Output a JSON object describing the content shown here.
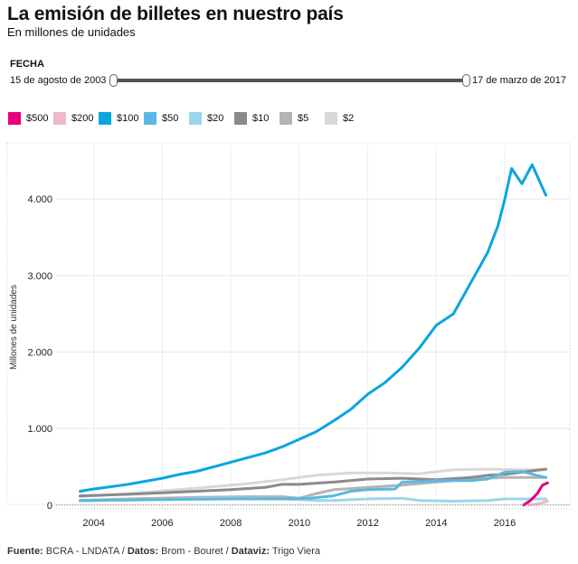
{
  "header": {
    "title": "La emisión de billetes en nuestro país",
    "subtitle": "En millones de unidades"
  },
  "filter": {
    "label": "FECHA",
    "start": "15 de agosto de 2003",
    "end": "17 de marzo de 2017"
  },
  "legend": [
    {
      "label": "$500",
      "color": "#e6007e"
    },
    {
      "label": "$200",
      "color": "#f0b8c8"
    },
    {
      "label": "$100",
      "color": "#0aa5e0"
    },
    {
      "label": "$50",
      "color": "#5ab8e0"
    },
    {
      "label": "$20",
      "color": "#9ad6ec"
    },
    {
      "label": "$10",
      "color": "#8a8a8a"
    },
    {
      "label": "$5",
      "color": "#b4b4b4"
    },
    {
      "label": "$2",
      "color": "#d8d8d8"
    }
  ],
  "footer": {
    "source_label": "Fuente:",
    "source": " BCRA - LNDATA / ",
    "data_label": "Datos:",
    "data": " Brom - Bouret / ",
    "viz_label": "Dataviz:",
    "viz": " Trigo Viera"
  },
  "chart_data": {
    "type": "line",
    "title": "La emisión de billetes en nuestro país",
    "subtitle": "En millones de unidades",
    "xlabel": "",
    "ylabel": "Millones de unidades",
    "xlim": [
      2002.9,
      2017.9
    ],
    "ylim": [
      -50,
      4700
    ],
    "y_ticks": [
      0,
      1000,
      2000,
      3000,
      4000
    ],
    "y_tick_labels": [
      "0",
      "1.000",
      "2.000",
      "3.000",
      "4.000"
    ],
    "x_ticks": [
      2004,
      2006,
      2008,
      2010,
      2012,
      2014,
      2016
    ],
    "x_tick_labels": [
      "2004",
      "2006",
      "2008",
      "2010",
      "2012",
      "2014",
      "2016"
    ],
    "grid": true,
    "series": [
      {
        "name": "$2",
        "color": "#d8d8d8",
        "x": [
          2003.6,
          2005,
          2007,
          2008.5,
          2009.5,
          2010.5,
          2011.5,
          2012.5,
          2013.5,
          2014.5,
          2015.5,
          2016.5,
          2017.2
        ],
        "y": [
          110,
          150,
          220,
          280,
          330,
          390,
          420,
          420,
          410,
          460,
          470,
          460,
          460
        ]
      },
      {
        "name": "$5",
        "color": "#b4b4b4",
        "x": [
          2003.6,
          2005,
          2007,
          2008.5,
          2009.5,
          2010,
          2010.5,
          2011,
          2012,
          2013,
          2014,
          2015,
          2016,
          2016.5,
          2017.2
        ],
        "y": [
          60,
          80,
          100,
          110,
          110,
          90,
          150,
          200,
          230,
          260,
          300,
          340,
          360,
          360,
          360
        ]
      },
      {
        "name": "$10",
        "color": "#8a8a8a",
        "x": [
          2003.6,
          2005,
          2006,
          2007,
          2008,
          2009,
          2009.5,
          2010,
          2011,
          2012,
          2013,
          2014,
          2015,
          2015.5,
          2016,
          2016.5,
          2017.2
        ],
        "y": [
          120,
          140,
          160,
          180,
          200,
          230,
          270,
          270,
          300,
          340,
          350,
          330,
          360,
          390,
          400,
          430,
          470
        ]
      },
      {
        "name": "$20",
        "color": "#9ad6ec",
        "x": [
          2003.6,
          2006,
          2008,
          2009.5,
          2010,
          2010.5,
          2011,
          2012,
          2013,
          2013.5,
          2014.5,
          2015.5,
          2016,
          2016.5,
          2017.2
        ],
        "y": [
          55,
          70,
          90,
          80,
          70,
          60,
          60,
          80,
          90,
          60,
          50,
          60,
          80,
          80,
          80
        ]
      },
      {
        "name": "$50",
        "color": "#5ab8e0",
        "x": [
          2003.6,
          2006,
          2008,
          2009.5,
          2010.3,
          2011,
          2011.5,
          2012,
          2012.8,
          2013,
          2014,
          2015,
          2015.5,
          2016,
          2016.5,
          2017,
          2017.2
        ],
        "y": [
          60,
          70,
          80,
          80,
          90,
          120,
          180,
          200,
          210,
          300,
          320,
          320,
          340,
          430,
          440,
          380,
          360
        ]
      },
      {
        "name": "$100",
        "color": "#0aa5e0",
        "x": [
          2003.6,
          2004,
          2004.5,
          2005,
          2005.5,
          2006,
          2006.5,
          2007,
          2007.5,
          2008,
          2008.5,
          2009,
          2009.5,
          2010,
          2010.5,
          2011,
          2011.5,
          2012,
          2012.5,
          2013,
          2013.5,
          2014,
          2014.5,
          2015,
          2015.5,
          2015.8,
          2016,
          2016.2,
          2016.5,
          2016.8,
          2017,
          2017.2
        ],
        "y": [
          180,
          210,
          240,
          270,
          310,
          350,
          400,
          440,
          500,
          560,
          620,
          680,
          760,
          860,
          960,
          1100,
          1250,
          1450,
          1600,
          1800,
          2050,
          2350,
          2500,
          2900,
          3300,
          3650,
          4000,
          4400,
          4200,
          4450,
          4250,
          4050
        ]
      },
      {
        "name": "$200",
        "color": "#f0b8c8",
        "x": [
          2016.7,
          2016.9,
          2017.1,
          2017.25
        ],
        "y": [
          0,
          10,
          30,
          50
        ]
      },
      {
        "name": "$500",
        "color": "#e6007e",
        "x": [
          2016.55,
          2016.75,
          2016.95,
          2017.1,
          2017.25
        ],
        "y": [
          0,
          60,
          150,
          260,
          290
        ]
      }
    ]
  }
}
